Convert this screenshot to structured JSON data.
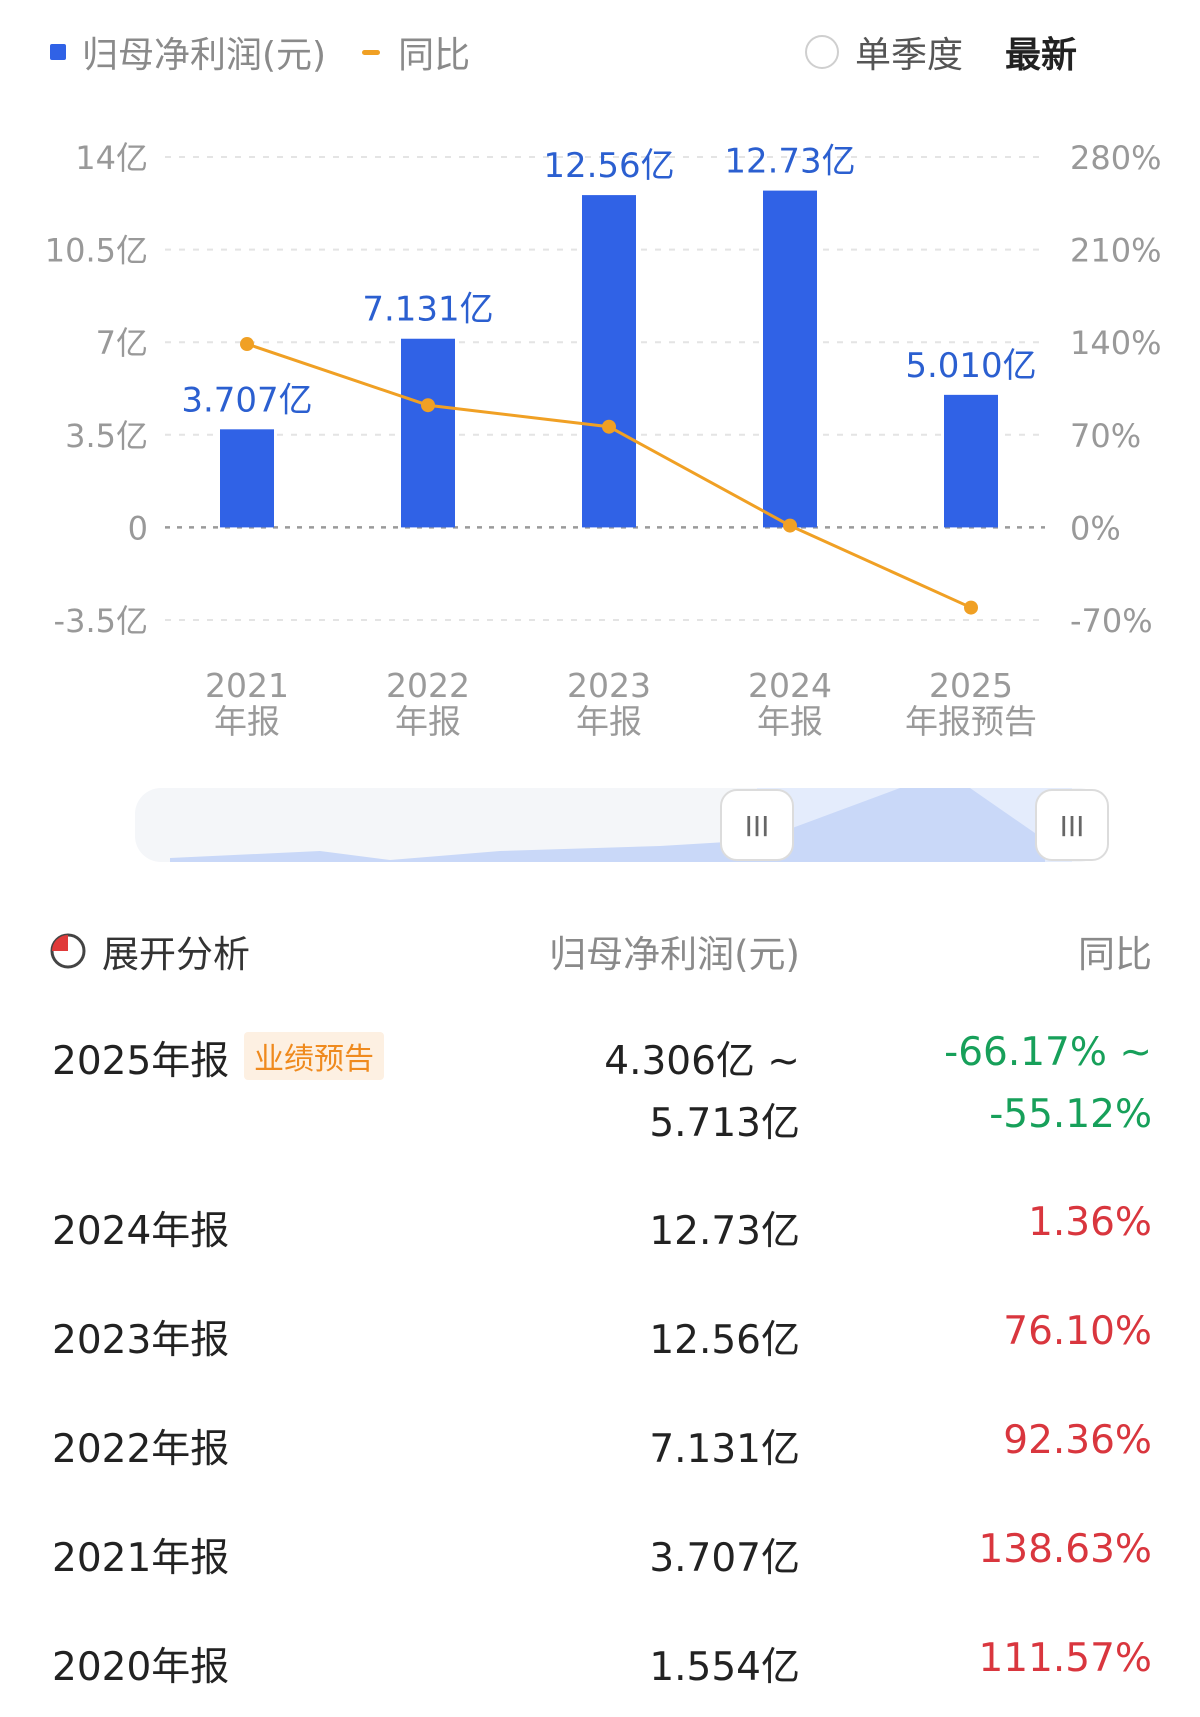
{
  "legend": {
    "profit_label": "归母净利润(元)",
    "yoy_label": "同比"
  },
  "toggles": {
    "quarter_label": "单季度",
    "latest_label": "最新"
  },
  "colors": {
    "bar": "#3062e6",
    "line": "#f0a024",
    "up": "#d9363e",
    "down": "#17a05a"
  },
  "chart_data": {
    "type": "bar",
    "categories": [
      "2021\n年报",
      "2022\n年报",
      "2023\n年报",
      "2024\n年报",
      "2025\n年报预告"
    ],
    "series": [
      {
        "name": "归母净利润(元)",
        "type": "bar",
        "axis": "left",
        "values": [
          3.707,
          7.131,
          12.56,
          12.73,
          5.01
        ],
        "labels": [
          "3.707亿",
          "7.131亿",
          "12.56亿",
          "12.73亿",
          "5.010亿"
        ]
      },
      {
        "name": "同比",
        "type": "line",
        "axis": "right",
        "values": [
          138.63,
          92.36,
          76.1,
          1.36,
          -60.6
        ]
      }
    ],
    "y_left": {
      "ticks": [
        14,
        10.5,
        7,
        3.5,
        0,
        -3.5
      ],
      "tick_labels": [
        "14亿",
        "10.5亿",
        "7亿",
        "3.5亿",
        "0",
        "-3.5亿"
      ],
      "range": [
        -3.5,
        14
      ]
    },
    "y_right": {
      "ticks": [
        280,
        210,
        140,
        70,
        0,
        -70
      ],
      "tick_labels": [
        "280%",
        "210%",
        "140%",
        "70%",
        "0%",
        "-70%"
      ],
      "range": [
        -70,
        280
      ]
    },
    "grid": true,
    "legend_position": "top-left"
  },
  "slider": {
    "handle_glyph": "III"
  },
  "table": {
    "header": {
      "analyze": "展开分析",
      "profit": "归母净利润(元)",
      "yoy": "同比"
    },
    "rows": [
      {
        "period": "2025年报",
        "badge": "业绩预告",
        "value": "4.306亿 ~",
        "value2": "5.713亿",
        "yoy": "-66.17% ~",
        "yoy2": "-55.12%",
        "trend": "down"
      },
      {
        "period": "2024年报",
        "value": "12.73亿",
        "yoy": "1.36%",
        "trend": "up"
      },
      {
        "period": "2023年报",
        "value": "12.56亿",
        "yoy": "76.10%",
        "trend": "up"
      },
      {
        "period": "2022年报",
        "value": "7.131亿",
        "yoy": "92.36%",
        "trend": "up"
      },
      {
        "period": "2021年报",
        "value": "3.707亿",
        "yoy": "138.63%",
        "trend": "up"
      },
      {
        "period": "2020年报",
        "value": "1.554亿",
        "yoy": "111.57%",
        "trend": "up"
      }
    ]
  }
}
